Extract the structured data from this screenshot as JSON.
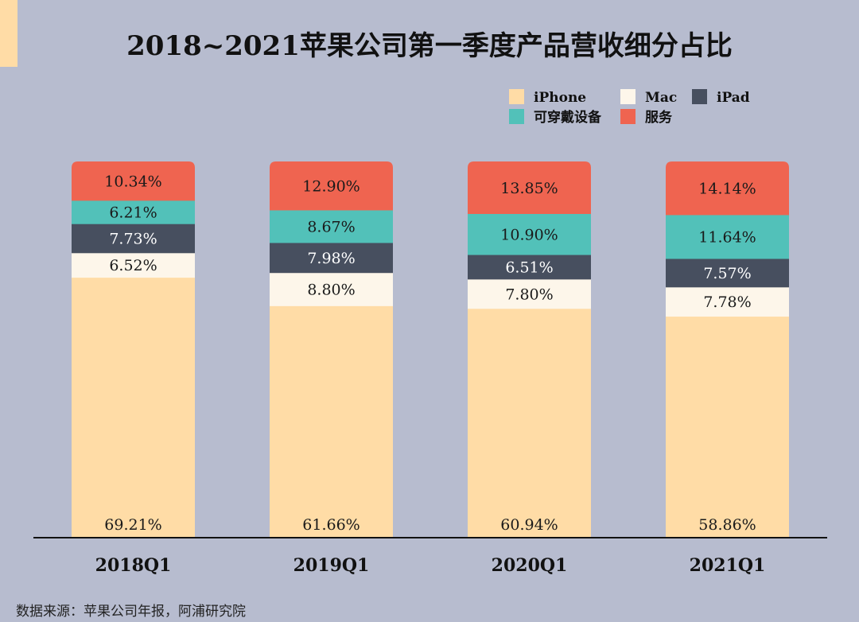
{
  "title": "2018~2021苹果公司第一季度产品营收细分占比",
  "source": "数据来源：苹果公司年报，阿浦研究院",
  "colors": {
    "background": "#b7bccf",
    "accent": "#ffdca6"
  },
  "chart_data": {
    "type": "bar",
    "stacked": true,
    "title": "2018~2021苹果公司第一季度产品营收细分占比",
    "xlabel": "",
    "ylabel": "",
    "ylim": [
      0,
      100
    ],
    "grid": false,
    "legend_position": "top-right",
    "categories": [
      "2018Q1",
      "2019Q1",
      "2020Q1",
      "2021Q1"
    ],
    "series": [
      {
        "name": "iPhone",
        "color": "#ffdca6",
        "values": [
          69.21,
          61.66,
          60.94,
          58.86
        ],
        "labels": [
          "69.21%",
          "61.66%",
          "60.94%",
          "58.86%"
        ]
      },
      {
        "name": "Mac",
        "color": "#fdf6ea",
        "values": [
          6.52,
          8.8,
          7.8,
          7.78
        ],
        "labels": [
          "6.52%",
          "8.80%",
          "7.80%",
          "7.78%"
        ]
      },
      {
        "name": "iPad",
        "color": "#474f5f",
        "values": [
          7.73,
          7.98,
          6.51,
          7.57
        ],
        "labels": [
          "7.73%",
          "7.98%",
          "6.51%",
          "7.57%"
        ]
      },
      {
        "name": "可穿戴设备",
        "color": "#52c1b9",
        "values": [
          6.21,
          8.67,
          10.9,
          11.64
        ],
        "labels": [
          "6.21%",
          "8.67%",
          "10.90%",
          "11.64%"
        ]
      },
      {
        "name": "服务",
        "color": "#ef6450",
        "values": [
          10.34,
          12.9,
          13.85,
          14.14
        ],
        "labels": [
          "10.34%",
          "12.90%",
          "13.85%",
          "14.14%"
        ]
      }
    ]
  }
}
